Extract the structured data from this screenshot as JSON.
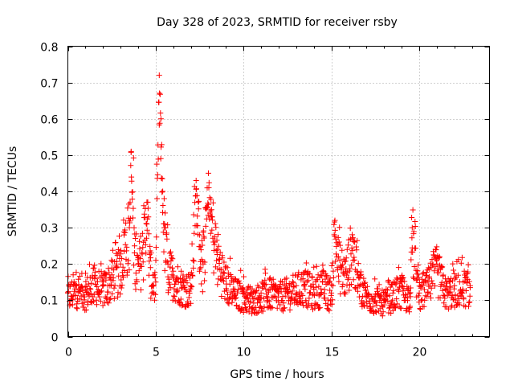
{
  "chart_data": {
    "type": "scatter",
    "title": "Day 328 of 2023, SRMTID for receiver rsby",
    "xlabel": "GPS time / hours",
    "ylabel": "SRMTID / TECUs",
    "xlim": [
      0,
      24
    ],
    "ylim": [
      0,
      0.8
    ],
    "xticks": [
      0,
      5,
      10,
      15,
      20
    ],
    "xtick_labels": [
      "0",
      "5",
      "10",
      "15",
      "20"
    ],
    "yticks": [
      0,
      0.1,
      0.2,
      0.3,
      0.4,
      0.5,
      0.6,
      0.7,
      0.8
    ],
    "ytick_labels": [
      "0",
      "0.1",
      "0.2",
      "0.3",
      "0.4",
      "0.5",
      "0.6",
      "0.7",
      "0.8"
    ],
    "grid": true,
    "marker": "+",
    "marker_color": "#ff0000",
    "data_extent_hours": [
      0,
      22.9
    ],
    "series": [
      {
        "name": "SRMTID",
        "note": "dense scatter, typical values; envelope points listed",
        "x": [
          0.0,
          0.5,
          1.0,
          1.5,
          2.0,
          2.5,
          3.0,
          3.2,
          3.5,
          3.6,
          3.8,
          4.0,
          4.3,
          4.5,
          4.7,
          5.0,
          5.2,
          5.3,
          5.4,
          5.5,
          5.7,
          6.0,
          6.5,
          7.0,
          7.3,
          7.5,
          7.7,
          8.0,
          8.2,
          8.5,
          9.0,
          9.5,
          10.0,
          10.5,
          11.0,
          11.5,
          12.0,
          12.5,
          13.0,
          13.5,
          14.0,
          14.5,
          15.0,
          15.2,
          15.4,
          15.8,
          16.2,
          16.5,
          17.0,
          17.5,
          18.0,
          18.5,
          19.0,
          19.5,
          19.6,
          20.0,
          20.5,
          21.0,
          21.5,
          22.0,
          22.5,
          22.9
        ],
        "y": [
          0.12,
          0.14,
          0.13,
          0.16,
          0.14,
          0.17,
          0.2,
          0.28,
          0.3,
          0.51,
          0.25,
          0.2,
          0.26,
          0.37,
          0.19,
          0.15,
          0.72,
          0.6,
          0.4,
          0.3,
          0.2,
          0.18,
          0.15,
          0.14,
          0.43,
          0.28,
          0.2,
          0.45,
          0.33,
          0.24,
          0.16,
          0.13,
          0.12,
          0.11,
          0.12,
          0.13,
          0.12,
          0.13,
          0.14,
          0.15,
          0.13,
          0.15,
          0.12,
          0.32,
          0.22,
          0.18,
          0.27,
          0.17,
          0.12,
          0.11,
          0.1,
          0.12,
          0.14,
          0.11,
          0.3,
          0.12,
          0.15,
          0.2,
          0.13,
          0.14,
          0.15,
          0.14
        ]
      }
    ]
  }
}
